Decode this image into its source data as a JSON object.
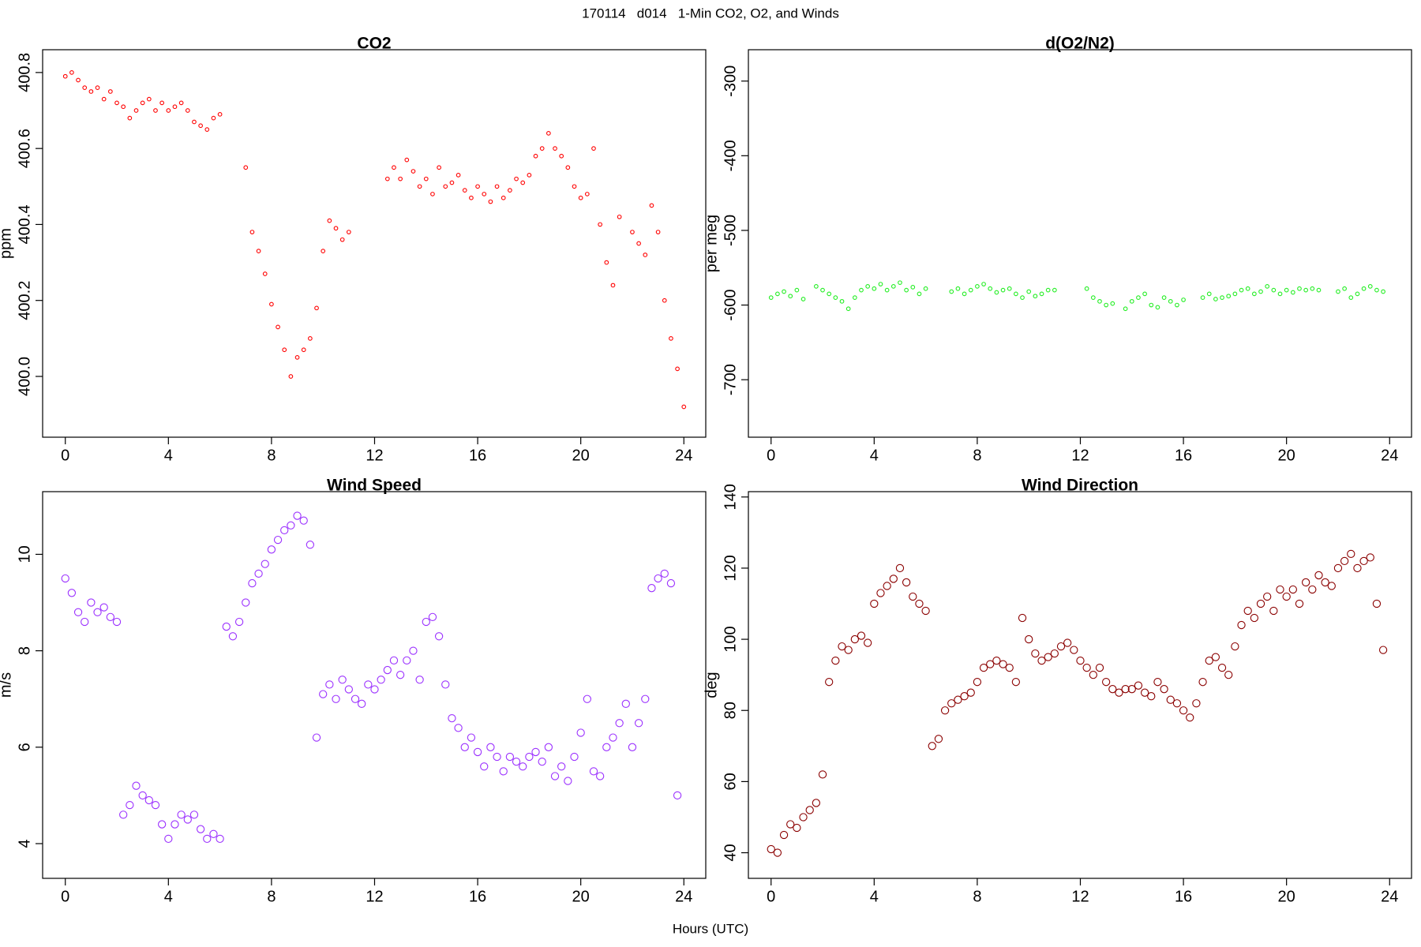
{
  "title": "170114   d014   1-Min CO2, O2, and Winds",
  "xlabel": "Hours (UTC)",
  "chart_data": [
    {
      "type": "scatter",
      "title": "CO2",
      "ylabel": "ppm",
      "color": "#ff0000",
      "xlim": [
        -0.88,
        24.85
      ],
      "xticks": [
        0,
        4,
        8,
        12,
        16,
        20,
        24
      ],
      "ylim": [
        399.84,
        400.86
      ],
      "yticks": [
        {
          "value": 400,
          "label": "400.0"
        },
        400.2,
        400.4,
        400.6,
        400.8
      ],
      "x": [
        0,
        0.25,
        0.5,
        0.75,
        1,
        1.25,
        1.5,
        1.75,
        2,
        2.25,
        2.5,
        2.75,
        3,
        3.25,
        3.5,
        3.75,
        4,
        4.25,
        4.5,
        4.75,
        5,
        5.25,
        5.5,
        5.75,
        6,
        6.25,
        6.5,
        6.75,
        7,
        7.25,
        7.5,
        7.75,
        8,
        8.25,
        8.5,
        8.75,
        9,
        9.25,
        9.5,
        9.75,
        10,
        10.25,
        10.5,
        10.75,
        11,
        11.25,
        11.5,
        11.75,
        12,
        12.25,
        12.5,
        12.75,
        13,
        13.25,
        13.5,
        13.75,
        14,
        14.25,
        14.5,
        14.75,
        15,
        15.25,
        15.5,
        15.75,
        16,
        16.25,
        16.5,
        16.75,
        17,
        17.25,
        17.5,
        17.75,
        18,
        18.25,
        18.5,
        18.75,
        19,
        19.25,
        19.5,
        19.75,
        20,
        20.25,
        20.5,
        20.75,
        21,
        21.25,
        21.5,
        21.75,
        22,
        22.25,
        22.5,
        22.75,
        23,
        23.25,
        23.5,
        23.75,
        24
      ],
      "y": [
        400.79,
        400.8,
        400.78,
        400.76,
        400.75,
        400.76,
        400.73,
        400.75,
        400.72,
        400.71,
        400.68,
        400.7,
        400.72,
        400.73,
        400.7,
        400.72,
        400.7,
        400.71,
        400.72,
        400.7,
        400.67,
        400.66,
        400.65,
        400.68,
        400.69,
        null,
        null,
        null,
        400.55,
        400.38,
        400.33,
        400.27,
        400.19,
        400.13,
        400.07,
        400.0,
        400.05,
        400.07,
        400.1,
        400.18,
        400.33,
        400.41,
        400.39,
        400.36,
        400.38,
        null,
        null,
        null,
        null,
        null,
        400.52,
        400.55,
        400.52,
        400.57,
        400.54,
        400.5,
        400.52,
        400.48,
        400.55,
        400.5,
        400.51,
        400.53,
        400.49,
        400.47,
        400.5,
        400.48,
        400.46,
        400.5,
        400.47,
        400.49,
        400.52,
        400.51,
        400.53,
        400.58,
        400.6,
        400.64,
        400.6,
        400.58,
        400.55,
        400.5,
        400.47,
        400.48,
        400.6,
        400.4,
        400.3,
        400.24,
        400.42,
        null,
        400.38,
        400.35,
        400.32,
        400.45,
        400.38,
        400.2,
        400.1,
        400.02,
        399.92
      ]
    },
    {
      "type": "scatter",
      "title": "d(O2/N2)",
      "ylabel": "per meg",
      "color": "#22ee22",
      "xlim": [
        -0.88,
        24.85
      ],
      "xticks": [
        0,
        4,
        8,
        12,
        16,
        20,
        24
      ],
      "ylim": [
        -777,
        -258
      ],
      "yticks": [
        -700,
        -600,
        -500,
        -400,
        -300
      ],
      "x": [
        0,
        0.25,
        0.5,
        0.75,
        1,
        1.25,
        1.5,
        1.75,
        2,
        2.25,
        2.5,
        2.75,
        3,
        3.25,
        3.5,
        3.75,
        4,
        4.25,
        4.5,
        4.75,
        5,
        5.25,
        5.5,
        5.75,
        6,
        6.25,
        6.5,
        6.75,
        7,
        7.25,
        7.5,
        7.75,
        8,
        8.25,
        8.5,
        8.75,
        9,
        9.25,
        9.5,
        9.75,
        10,
        10.25,
        10.5,
        10.75,
        11,
        11.25,
        11.5,
        11.75,
        12,
        12.25,
        12.5,
        12.75,
        13,
        13.25,
        13.5,
        13.75,
        14,
        14.25,
        14.5,
        14.75,
        15,
        15.25,
        15.5,
        15.75,
        16,
        16.25,
        16.5,
        16.75,
        17,
        17.25,
        17.5,
        17.75,
        18,
        18.25,
        18.5,
        18.75,
        19,
        19.25,
        19.5,
        19.75,
        20,
        20.25,
        20.5,
        20.75,
        21,
        21.25,
        21.5,
        21.75,
        22,
        22.25,
        22.5,
        22.75,
        23,
        23.25,
        23.5,
        23.75,
        24
      ],
      "y": [
        -590,
        -585,
        -582,
        -588,
        -580,
        -592,
        null,
        -575,
        -580,
        -585,
        -590,
        -595,
        -605,
        -590,
        -580,
        -575,
        -578,
        -572,
        -580,
        -575,
        -570,
        -580,
        -576,
        -585,
        -578,
        null,
        null,
        null,
        -582,
        -578,
        -585,
        -580,
        -575,
        -572,
        -578,
        -583,
        -580,
        -578,
        -585,
        -590,
        -582,
        -588,
        -585,
        -580,
        -580,
        null,
        null,
        null,
        null,
        -578,
        -590,
        -595,
        -600,
        -598,
        null,
        -605,
        -595,
        -590,
        -585,
        -600,
        -603,
        -590,
        -595,
        -600,
        -593,
        null,
        null,
        -590,
        -585,
        -592,
        -590,
        -588,
        -585,
        -580,
        -578,
        -585,
        -582,
        -575,
        -580,
        -585,
        -580,
        -583,
        -578,
        -580,
        -578,
        -580,
        null,
        null,
        -582,
        -578,
        -590,
        -585,
        -578,
        -575,
        -580,
        -582,
        null
      ]
    },
    {
      "type": "scatter",
      "title": "Wind Speed",
      "ylabel": "m/s",
      "color": "#9b30ff",
      "xlim": [
        -0.88,
        24.85
      ],
      "xticks": [
        0,
        4,
        8,
        12,
        16,
        20,
        24
      ],
      "ylim": [
        3.28,
        11.3
      ],
      "yticks": [
        4,
        6,
        8,
        10
      ],
      "x": [
        0,
        0.25,
        0.5,
        0.75,
        1,
        1.25,
        1.5,
        1.75,
        2,
        2.25,
        2.5,
        2.75,
        3,
        3.25,
        3.5,
        3.75,
        4,
        4.25,
        4.5,
        4.75,
        5,
        5.25,
        5.5,
        5.75,
        6,
        6.25,
        6.5,
        6.75,
        7,
        7.25,
        7.5,
        7.75,
        8,
        8.25,
        8.5,
        8.75,
        9,
        9.25,
        9.5,
        9.75,
        10,
        10.25,
        10.5,
        10.75,
        11,
        11.25,
        11.5,
        11.75,
        12,
        12.25,
        12.5,
        12.75,
        13,
        13.25,
        13.5,
        13.75,
        14,
        14.25,
        14.5,
        14.75,
        15,
        15.25,
        15.5,
        15.75,
        16,
        16.25,
        16.5,
        16.75,
        17,
        17.25,
        17.5,
        17.75,
        18,
        18.25,
        18.5,
        18.75,
        19,
        19.25,
        19.5,
        19.75,
        20,
        20.25,
        20.5,
        20.75,
        21,
        21.25,
        21.5,
        21.75,
        22,
        22.25,
        22.5,
        22.75,
        23,
        23.25,
        23.5,
        23.75,
        24
      ],
      "y": [
        9.5,
        9.2,
        8.8,
        8.6,
        9.0,
        8.8,
        8.9,
        8.7,
        8.6,
        4.6,
        4.8,
        5.2,
        5.0,
        4.9,
        4.8,
        4.4,
        4.1,
        4.4,
        4.6,
        4.5,
        4.6,
        4.3,
        4.1,
        4.2,
        4.1,
        8.5,
        8.3,
        8.6,
        9.0,
        9.4,
        9.6,
        9.8,
        10.1,
        10.3,
        10.5,
        10.6,
        10.8,
        10.7,
        10.2,
        6.2,
        7.1,
        7.3,
        7.0,
        7.4,
        7.2,
        7.0,
        6.9,
        7.3,
        7.2,
        7.4,
        7.6,
        7.8,
        7.5,
        7.8,
        8.0,
        7.4,
        8.6,
        8.7,
        8.3,
        7.3,
        6.6,
        6.4,
        6.0,
        6.2,
        5.9,
        5.6,
        6.0,
        5.8,
        5.5,
        5.8,
        5.7,
        5.6,
        5.8,
        5.9,
        5.7,
        6.0,
        5.4,
        5.6,
        5.3,
        5.8,
        6.3,
        7.0,
        5.5,
        5.4,
        6.0,
        6.2,
        6.5,
        6.9,
        6.0,
        6.5,
        7.0,
        9.3,
        9.5,
        9.6,
        9.4,
        5.0,
        null
      ]
    },
    {
      "type": "scatter",
      "title": "Wind Direction",
      "ylabel": "deg",
      "color": "#8b0000",
      "xlim": [
        -0.88,
        24.85
      ],
      "xticks": [
        0,
        4,
        8,
        12,
        16,
        20,
        24
      ],
      "ylim": [
        32.8,
        141.5
      ],
      "yticks": [
        40,
        60,
        80,
        100,
        120,
        140
      ],
      "x": [
        0,
        0.25,
        0.5,
        0.75,
        1,
        1.25,
        1.5,
        1.75,
        2,
        2.25,
        2.5,
        2.75,
        3,
        3.25,
        3.5,
        3.75,
        4,
        4.25,
        4.5,
        4.75,
        5,
        5.25,
        5.5,
        5.75,
        6,
        6.25,
        6.5,
        6.75,
        7,
        7.25,
        7.5,
        7.75,
        8,
        8.25,
        8.5,
        8.75,
        9,
        9.25,
        9.5,
        9.75,
        10,
        10.25,
        10.5,
        10.75,
        11,
        11.25,
        11.5,
        11.75,
        12,
        12.25,
        12.5,
        12.75,
        13,
        13.25,
        13.5,
        13.75,
        14,
        14.25,
        14.5,
        14.75,
        15,
        15.25,
        15.5,
        15.75,
        16,
        16.25,
        16.5,
        16.75,
        17,
        17.25,
        17.5,
        17.75,
        18,
        18.25,
        18.5,
        18.75,
        19,
        19.25,
        19.5,
        19.75,
        20,
        20.25,
        20.5,
        20.75,
        21,
        21.25,
        21.5,
        21.75,
        22,
        22.25,
        22.5,
        22.75,
        23,
        23.25,
        23.5,
        23.75,
        24
      ],
      "y": [
        41,
        40,
        45,
        48,
        47,
        50,
        52,
        54,
        62,
        88,
        94,
        98,
        97,
        100,
        101,
        99,
        110,
        113,
        115,
        117,
        120,
        116,
        112,
        110,
        108,
        70,
        72,
        80,
        82,
        83,
        84,
        85,
        88,
        92,
        93,
        94,
        93,
        92,
        88,
        106,
        100,
        96,
        94,
        95,
        96,
        98,
        99,
        97,
        94,
        92,
        90,
        92,
        88,
        86,
        85,
        86,
        86,
        87,
        85,
        84,
        88,
        86,
        83,
        82,
        80,
        78,
        82,
        88,
        94,
        95,
        92,
        90,
        98,
        104,
        108,
        106,
        110,
        112,
        108,
        114,
        112,
        114,
        110,
        116,
        114,
        118,
        116,
        115,
        120,
        122,
        124,
        120,
        122,
        123,
        110,
        97,
        null
      ]
    }
  ]
}
